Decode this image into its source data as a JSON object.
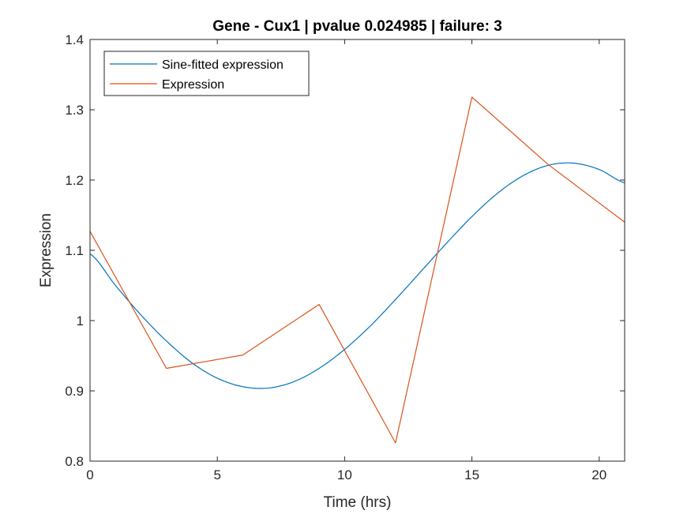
{
  "chart_data": {
    "type": "line",
    "title": "Gene - Cux1 | pvalue 0.024985 | failure: 3",
    "xlabel": "Time (hrs)",
    "ylabel": "Expression",
    "xlim": [
      0,
      21
    ],
    "ylim": [
      0.8,
      1.4
    ],
    "x_ticks": [
      0,
      5,
      10,
      15,
      20
    ],
    "x_tick_labels": [
      "0",
      "5",
      "10",
      "15",
      "20"
    ],
    "y_ticks": [
      0.8,
      0.9,
      1.0,
      1.1,
      1.2,
      1.3,
      1.4
    ],
    "y_tick_labels": [
      "0.8",
      "0.9",
      "1",
      "1.1",
      "1.2",
      "1.3",
      "1.4"
    ],
    "grid": false,
    "legend_position": "top-left",
    "series": [
      {
        "name": "Sine-fitted expression",
        "color": "#0072BD",
        "x": [
          0,
          1,
          2,
          3,
          4,
          5,
          6,
          7,
          8,
          9,
          10,
          11,
          12,
          13,
          14,
          15,
          16,
          17,
          18,
          19,
          20,
          21
        ],
        "values": [
          1.095,
          1.05,
          1.008,
          0.971,
          0.94,
          0.918,
          0.906,
          0.904,
          0.913,
          0.932,
          0.959,
          0.992,
          1.03,
          1.07,
          1.11,
          1.148,
          1.181,
          1.206,
          1.221,
          1.224,
          1.215,
          1.196
        ]
      },
      {
        "name": "Expression",
        "color": "#D95319",
        "x": [
          0,
          3,
          6,
          9,
          12,
          15,
          18,
          21
        ],
        "values": [
          1.127,
          0.932,
          0.951,
          1.023,
          0.826,
          1.318,
          1.222,
          1.14
        ]
      }
    ]
  }
}
